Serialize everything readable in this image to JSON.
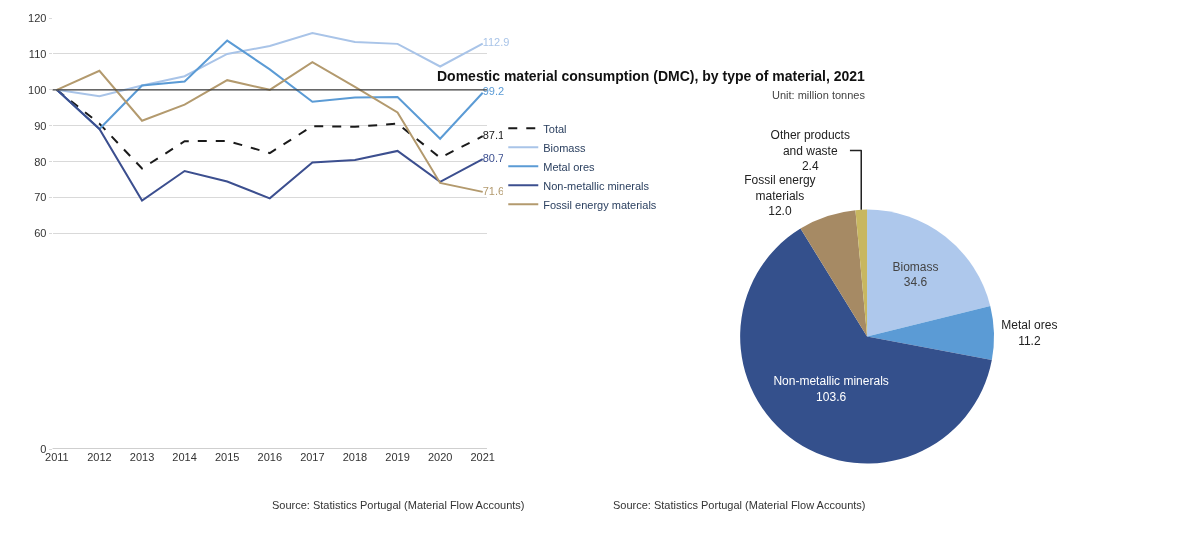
{
  "chart_data": [
    {
      "type": "line",
      "categories": [
        "2011",
        "2012",
        "2013",
        "2014",
        "2015",
        "2016",
        "2017",
        "2018",
        "2019",
        "2020",
        "2021"
      ],
      "series": [
        {
          "name": "Total",
          "color": "#1a1a1a",
          "line_style": "dashed",
          "values": [
            100,
            90.6,
            78.1,
            85.7,
            85.8,
            82.4,
            89.9,
            89.7,
            90.6,
            81.1,
            87.1
          ],
          "value_labels": [
            null,
            null,
            null,
            null,
            null,
            null,
            null,
            null,
            null,
            null,
            "87.1"
          ]
        },
        {
          "name": "Biomass",
          "color": "#a9c4e8",
          "values": [
            100,
            98.2,
            101.2,
            103.8,
            110,
            112.2,
            115.8,
            113.3,
            112.8,
            106.5,
            112.9
          ],
          "value_labels": [
            null,
            null,
            null,
            null,
            null,
            null,
            null,
            null,
            null,
            null,
            "112.9"
          ]
        },
        {
          "name": "Metal ores",
          "color": "#5b9bd5",
          "values": [
            100,
            89.1,
            101.2,
            102.3,
            113.7,
            105.7,
            96.7,
            97.9,
            98,
            86.4,
            99.2
          ],
          "value_labels": [
            null,
            null,
            null,
            null,
            null,
            null,
            null,
            null,
            null,
            null,
            "99.2"
          ]
        },
        {
          "name": "Non-metallic minerals",
          "color": "#3c4f8f",
          "values": [
            100,
            89.1,
            69.2,
            77.4,
            74.5,
            69.8,
            79.8,
            80.5,
            83,
            74.4,
            80.7
          ],
          "value_labels": [
            null,
            null,
            null,
            null,
            null,
            null,
            null,
            null,
            null,
            null,
            "80.7"
          ]
        },
        {
          "name": "Fossil energy materials",
          "color": "#b39a6e",
          "values": [
            100,
            105.3,
            91.4,
            95.9,
            102.7,
            100,
            107.7,
            100.8,
            93.7,
            74.1,
            71.6
          ],
          "value_labels": [
            null,
            null,
            null,
            null,
            null,
            null,
            null,
            null,
            null,
            null,
            "71.6"
          ]
        }
      ],
      "ylim": [
        0,
        120
      ],
      "yticks": [
        0,
        60,
        70,
        80,
        90,
        100,
        110,
        120
      ],
      "grid": "y",
      "legend": "right",
      "ref_lines": [
        {
          "axis": "y",
          "value": 100,
          "color": "#404040"
        }
      ],
      "annotations": [
        "Source: Statistics Portugal (Material Flow Accounts)"
      ]
    },
    {
      "type": "pie",
      "title": "Domestic material consumption (DMC), by type of material, 2021",
      "subtitle": "Unit: million tonnes",
      "categories": [
        "Biomass",
        "Metal ores",
        "Non-metallic minerals",
        "Fossil energy materials",
        "Other products and waste"
      ],
      "values": [
        34.6,
        11.2,
        103.6,
        12.0,
        2.4
      ],
      "value_labels": [
        "34.6",
        "11.2",
        "103.6",
        "12.0",
        "2.4"
      ],
      "colors": [
        "#aec8ec",
        "#5b9bd5",
        "#34508c",
        "#a68a64",
        "#c8b760"
      ],
      "data_labels": true,
      "annotations": [
        "Source: Statistics Portugal (Material Flow Accounts)"
      ]
    }
  ]
}
